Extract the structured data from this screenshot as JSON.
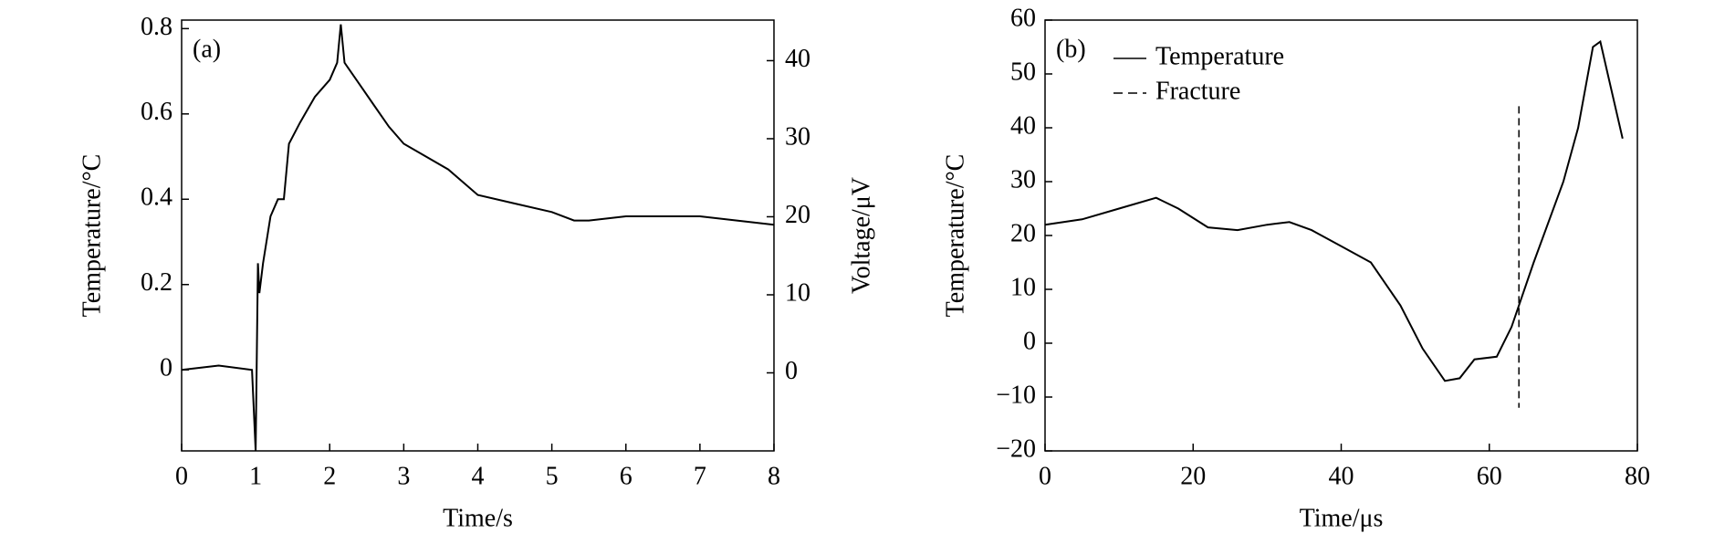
{
  "chart_data": [
    {
      "type": "line",
      "panel_label": "(a)",
      "xlabel": "Time/s",
      "ylabel": "Temperature/°C",
      "y2label": "Voltage/μV",
      "xlim": [
        0,
        8
      ],
      "xticks": [
        0,
        1,
        2,
        3,
        4,
        5,
        6,
        7,
        8
      ],
      "ylim": [
        -0.19,
        0.82
      ],
      "yticks": [
        0,
        0.2,
        0.4,
        0.6,
        0.8
      ],
      "y2lim": [
        -10,
        45.2
      ],
      "y2ticks": [
        0,
        10,
        20,
        30,
        40
      ],
      "series": [
        {
          "color": "#000000",
          "style": "solid",
          "x": [
            0,
            0.5,
            0.95,
            1.0,
            1.03,
            1.05,
            1.1,
            1.2,
            1.3,
            1.38,
            1.45,
            1.6,
            1.8,
            2.0,
            2.1,
            2.15,
            2.2,
            2.4,
            2.6,
            2.8,
            3.0,
            3.3,
            3.6,
            4.0,
            4.5,
            5.0,
            5.3,
            5.5,
            6.0,
            6.5,
            7.0,
            7.5,
            8.0
          ],
          "values": [
            0.0,
            0.01,
            0.0,
            -0.19,
            0.25,
            0.18,
            0.25,
            0.36,
            0.4,
            0.4,
            0.53,
            0.58,
            0.64,
            0.68,
            0.72,
            0.81,
            0.72,
            0.67,
            0.62,
            0.57,
            0.53,
            0.5,
            0.47,
            0.41,
            0.39,
            0.37,
            0.35,
            0.35,
            0.36,
            0.36,
            0.36,
            0.35,
            0.34
          ]
        }
      ]
    },
    {
      "type": "line",
      "panel_label": "(b)",
      "xlabel": "Time/μs",
      "ylabel": "Temperature/°C",
      "xlim": [
        0,
        80
      ],
      "xticks": [
        0,
        20,
        40,
        60,
        80
      ],
      "ylim": [
        -20,
        60
      ],
      "yticks": [
        {
          "value": -20,
          "label": "−20"
        },
        {
          "value": -10,
          "label": "−10"
        },
        0,
        10,
        20,
        30,
        40,
        50,
        60
      ],
      "legend": "upper left",
      "series": [
        {
          "name": "Temperature",
          "color": "#000000",
          "style": "solid",
          "x": [
            0,
            5,
            10,
            15,
            18,
            22,
            26,
            30,
            33,
            36,
            40,
            44,
            48,
            51,
            54,
            56,
            58,
            61,
            63,
            66,
            70,
            72,
            74,
            75,
            76,
            78
          ],
          "values": [
            22,
            23,
            25,
            27,
            25,
            21.5,
            21,
            22,
            22.5,
            21,
            18,
            15,
            7,
            -1,
            -7,
            -6.5,
            -3,
            -2.5,
            3,
            15,
            30,
            40,
            55,
            56,
            50,
            38
          ]
        },
        {
          "name": "Fracture",
          "color": "#000000",
          "style": "dashed",
          "x": [
            64,
            64
          ],
          "values": [
            44,
            -12
          ]
        }
      ]
    }
  ]
}
